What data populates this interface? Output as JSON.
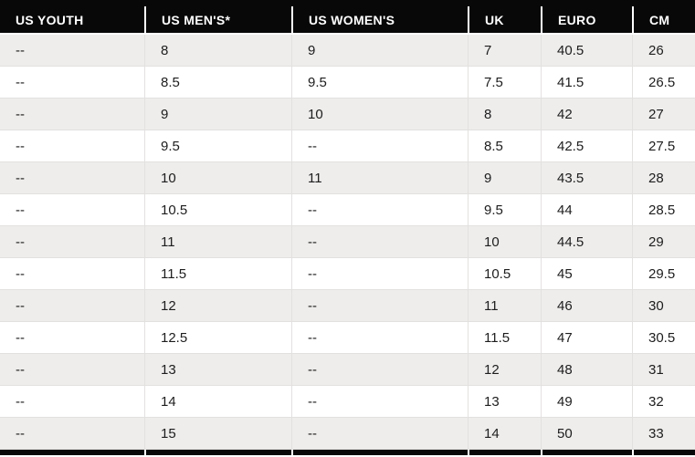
{
  "colors": {
    "header_bg": "#080808",
    "header_text": "#ffffff",
    "row_bg": "#ffffff",
    "row_alt_bg": "#eeedec",
    "cell_border": "#e3e1e0",
    "cell_text": "#1d1d1d",
    "header_separator": "#ffffff"
  },
  "table": {
    "columns": [
      {
        "label": "US YOUTH"
      },
      {
        "label": "US MEN'S*"
      },
      {
        "label": "US WOMEN'S"
      },
      {
        "label": "UK"
      },
      {
        "label": "EURO"
      },
      {
        "label": "CM"
      }
    ],
    "rows": [
      [
        "--",
        "8",
        "9",
        "7",
        "40.5",
        "26"
      ],
      [
        "--",
        "8.5",
        "9.5",
        "7.5",
        "41.5",
        "26.5"
      ],
      [
        "--",
        "9",
        "10",
        "8",
        "42",
        "27"
      ],
      [
        "--",
        "9.5",
        "--",
        "8.5",
        "42.5",
        "27.5"
      ],
      [
        "--",
        "10",
        "11",
        "9",
        "43.5",
        "28"
      ],
      [
        "--",
        "10.5",
        "--",
        "9.5",
        "44",
        "28.5"
      ],
      [
        "--",
        "11",
        "--",
        "10",
        "44.5",
        "29"
      ],
      [
        "--",
        "11.5",
        "--",
        "10.5",
        "45",
        "29.5"
      ],
      [
        "--",
        "12",
        "--",
        "11",
        "46",
        "30"
      ],
      [
        "--",
        "12.5",
        "--",
        "11.5",
        "47",
        "30.5"
      ],
      [
        "--",
        "13",
        "--",
        "12",
        "48",
        "31"
      ],
      [
        "--",
        "14",
        "--",
        "13",
        "49",
        "32"
      ],
      [
        "--",
        "15",
        "--",
        "14",
        "50",
        "33"
      ]
    ]
  }
}
